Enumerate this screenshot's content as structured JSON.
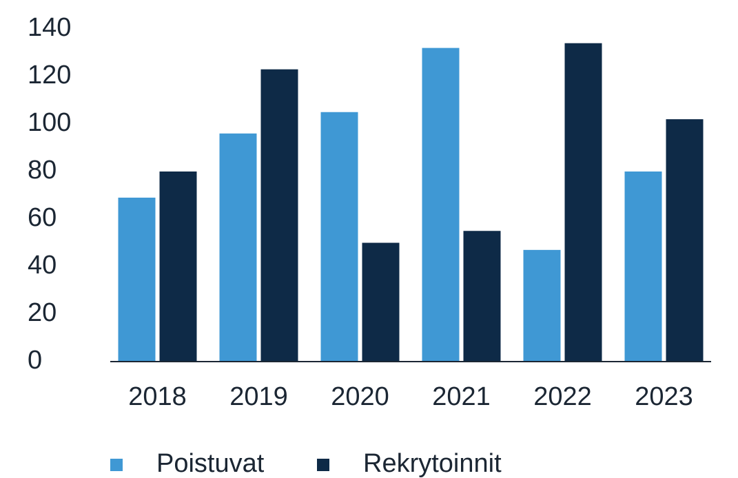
{
  "chart_data": {
    "type": "bar",
    "categories": [
      "2018",
      "2019",
      "2020",
      "2021",
      "2022",
      "2023"
    ],
    "series": [
      {
        "name": "Poistuvat",
        "color": "#3f98d4",
        "values": [
          69,
          96,
          105,
          132,
          47,
          80
        ]
      },
      {
        "name": "Rekrytoinnit",
        "color": "#0e2a47",
        "values": [
          80,
          123,
          50,
          55,
          134,
          102
        ]
      }
    ],
    "ylim": [
      0,
      140
    ],
    "yticks": [
      0,
      20,
      40,
      60,
      80,
      100,
      120,
      140
    ],
    "grid": false,
    "legend": "bottom"
  }
}
